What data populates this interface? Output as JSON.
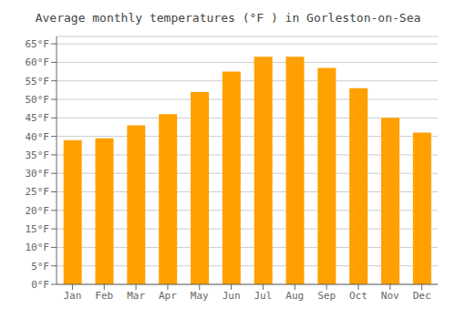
{
  "chart_data": {
    "type": "bar",
    "title": "Average monthly temperatures (°F ) in Gorleston-on-Sea",
    "categories": [
      "Jan",
      "Feb",
      "Mar",
      "Apr",
      "May",
      "Jun",
      "Jul",
      "Aug",
      "Sep",
      "Oct",
      "Nov",
      "Dec"
    ],
    "values": [
      39.0,
      39.5,
      43.0,
      46.0,
      52.0,
      57.5,
      61.5,
      61.5,
      58.5,
      53.0,
      45.0,
      41.0
    ],
    "color": "#FFA000",
    "ylim": [
      0,
      67
    ],
    "yticks": [
      {
        "value": 0,
        "label": "0°F"
      },
      {
        "value": 5,
        "label": "5°F"
      },
      {
        "value": 10,
        "label": "10°F"
      },
      {
        "value": 15,
        "label": "15°F"
      },
      {
        "value": 20,
        "label": "20°F"
      },
      {
        "value": 25,
        "label": "25°F"
      },
      {
        "value": 30,
        "label": "30°F"
      },
      {
        "value": 35,
        "label": "35°F"
      },
      {
        "value": 40,
        "label": "40°F"
      },
      {
        "value": 45,
        "label": "45°F"
      },
      {
        "value": 50,
        "label": "50°F"
      },
      {
        "value": 55,
        "label": "55°F"
      },
      {
        "value": 60,
        "label": "60°F"
      },
      {
        "value": 65,
        "label": "65°F"
      }
    ],
    "grid": true
  }
}
